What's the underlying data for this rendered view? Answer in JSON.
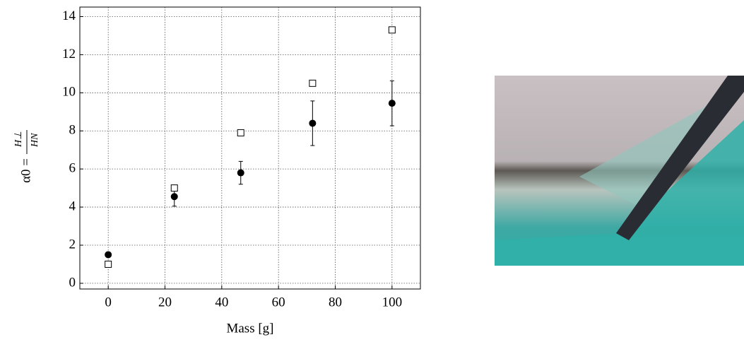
{
  "chart_data": {
    "type": "scatter",
    "xlabel": "Mass [g]",
    "ylabel_lhs": "α0 =",
    "ylabel_num": "H⊥",
    "ylabel_den": "HN",
    "x": [
      0,
      23.3,
      46.7,
      72,
      100
    ],
    "series": [
      {
        "marker": "circle",
        "color": "#000000",
        "values": [
          1.5,
          4.55,
          5.8,
          8.4,
          9.45
        ],
        "errors": [
          null,
          0.5,
          0.6,
          1.17,
          1.18
        ]
      },
      {
        "marker": "square",
        "color": "#000000",
        "values": [
          1.0,
          5.0,
          7.9,
          10.5,
          13.3
        ]
      }
    ],
    "xlim": [
      -10,
      110
    ],
    "xticks": [
      0,
      20,
      40,
      60,
      80,
      100
    ],
    "ylim": [
      -0.3,
      14.5
    ],
    "yticks": [
      0,
      2,
      4,
      6,
      8,
      10,
      12,
      14
    ],
    "grid": true
  }
}
